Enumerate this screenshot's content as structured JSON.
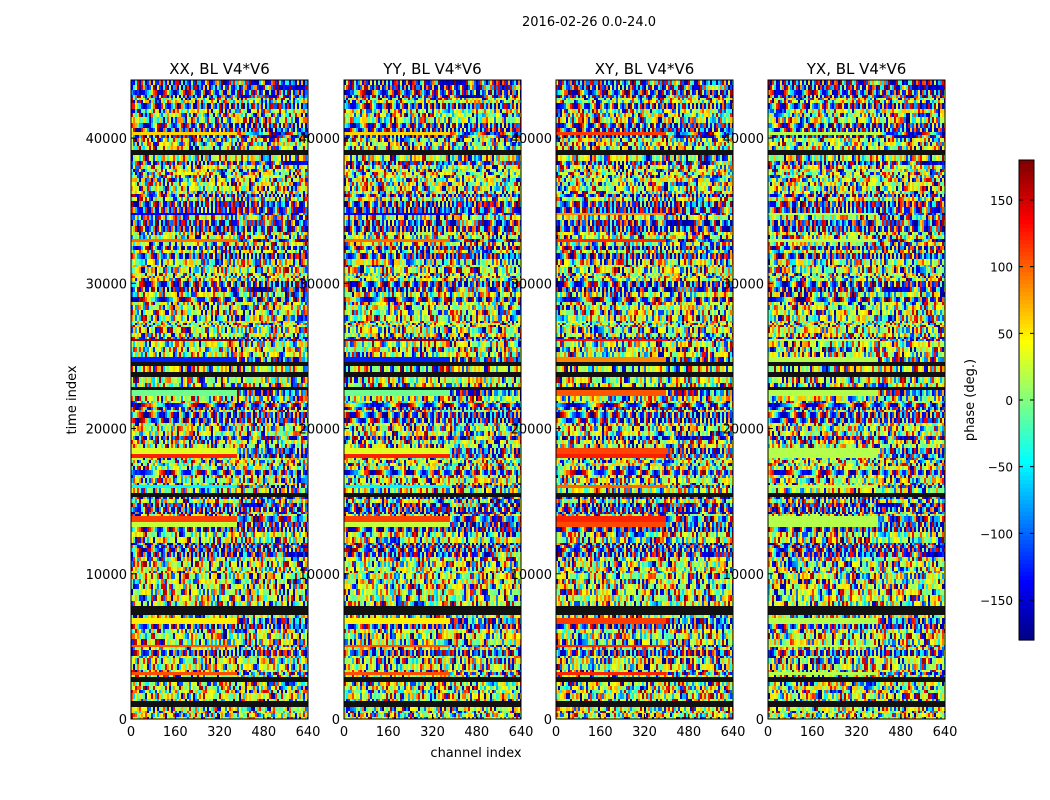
{
  "figure": {
    "suptitle": "2016-02-26 0.0-24.0",
    "xlabel": "channel index",
    "ylabel": "time index",
    "colorbar_label": "phase (deg.)"
  },
  "chart_data": {
    "type": "heatmap",
    "colormap": "jet",
    "value_range": [
      -180,
      180
    ],
    "x_range": [
      0,
      640
    ],
    "y_range": [
      0,
      44000
    ],
    "x_ticks": [
      0,
      160,
      320,
      480,
      640
    ],
    "y_ticks": [
      0,
      10000,
      20000,
      30000,
      40000
    ],
    "colorbar_ticks": [
      -150,
      -100,
      -50,
      0,
      50,
      100,
      150
    ],
    "panels": [
      {
        "title": "XX, BL V4*V6",
        "id": "xx"
      },
      {
        "title": "YY, BL V4*V6",
        "id": "yy"
      },
      {
        "title": "XY, BL V4*V6",
        "id": "xy"
      },
      {
        "title": "YX, BL V4*V6",
        "id": "yx"
      }
    ]
  }
}
